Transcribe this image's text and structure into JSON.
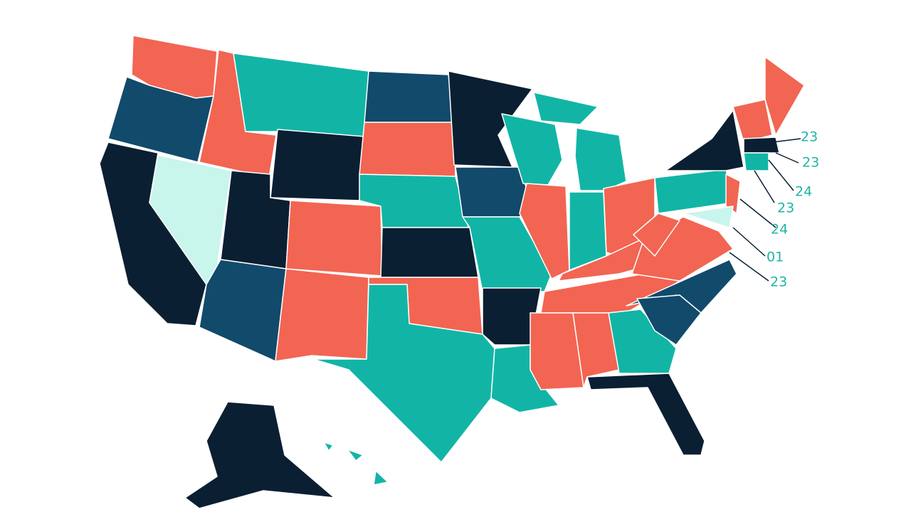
{
  "callouts": [
    {
      "label": "23"
    },
    {
      "label": "23"
    },
    {
      "label": "24"
    },
    {
      "label": "23"
    },
    {
      "label": "24"
    },
    {
      "label": "01"
    },
    {
      "label": "23"
    }
  ]
}
